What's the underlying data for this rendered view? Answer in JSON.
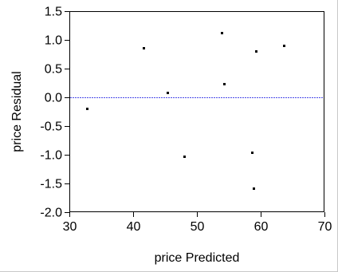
{
  "chart_data": {
    "type": "scatter",
    "xlabel": "price Predicted",
    "ylabel": "price Residual",
    "xlim": [
      30,
      70
    ],
    "ylim": [
      -2.0,
      1.5
    ],
    "x_ticks": [
      30,
      40,
      50,
      60,
      70
    ],
    "y_ticks": [
      -2.0,
      -1.5,
      -1.0,
      -0.5,
      0.0,
      0.5,
      1.0,
      1.5
    ],
    "x_tick_labels": [
      "30",
      "40",
      "50",
      "60",
      "70"
    ],
    "y_tick_labels": [
      "-2.0",
      "-1.5",
      "-1.0",
      "-0.5",
      "0.0",
      "0.5",
      "1.0",
      "1.5"
    ],
    "grid": false,
    "reference_line": {
      "y": 0.0,
      "color": "#4a4ae8"
    },
    "marker_color": "#000000",
    "points": [
      {
        "x": 32.7,
        "y": -0.2
      },
      {
        "x": 41.6,
        "y": 0.86
      },
      {
        "x": 45.4,
        "y": 0.08
      },
      {
        "x": 48.0,
        "y": -1.03
      },
      {
        "x": 53.9,
        "y": 1.12
      },
      {
        "x": 54.2,
        "y": 0.24
      },
      {
        "x": 58.6,
        "y": -0.96
      },
      {
        "x": 58.9,
        "y": -1.58
      },
      {
        "x": 59.2,
        "y": 0.81
      },
      {
        "x": 63.6,
        "y": 0.9
      }
    ]
  }
}
